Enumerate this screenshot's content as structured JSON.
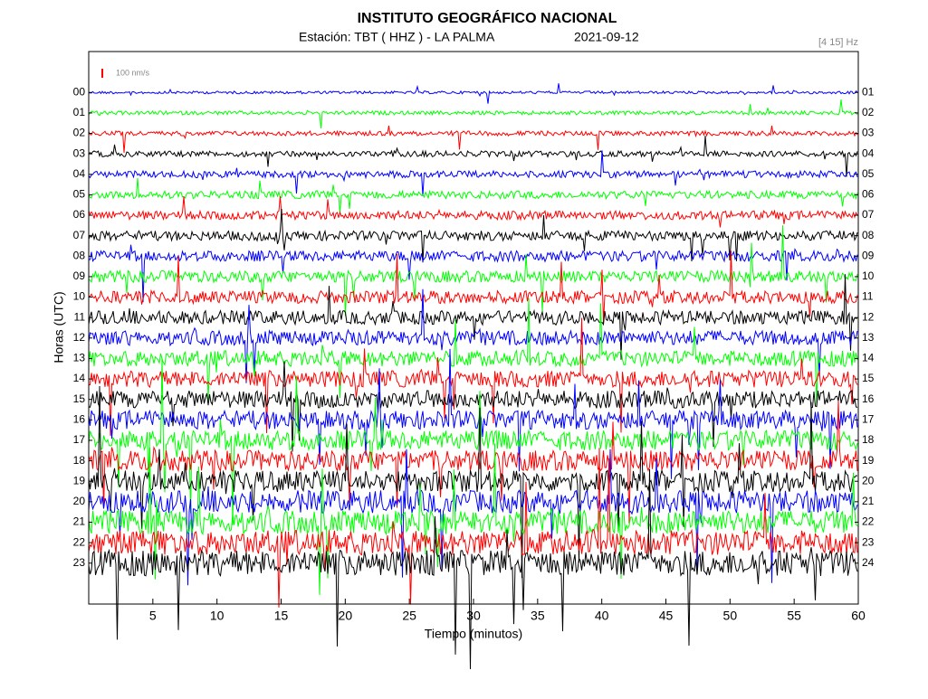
{
  "chart_data": {
    "type": "helicorder",
    "title": "INSTITUTO GEOGRÁFICO NACIONAL",
    "station": "Estación:  TBT ( HHZ ) - LA PALMA",
    "date": "2021-09-12",
    "filter": "[4 15] Hz",
    "scale_label": "100 nm/s",
    "xlabel": "Tiempo (minutos)",
    "ylabel": "Horas (UTC)",
    "xlim": [
      0,
      60
    ],
    "xticks": [
      5,
      10,
      15,
      20,
      25,
      30,
      35,
      40,
      45,
      50,
      55,
      60
    ],
    "ylim": [
      25,
      -2
    ],
    "colors": [
      "#0000ff",
      "#00ff00",
      "#ff0000",
      "#000000"
    ],
    "yticks": [
      {
        "value": 0,
        "label": "00"
      },
      {
        "value": 1,
        "label": "01"
      },
      {
        "value": 2,
        "label": "02"
      },
      {
        "value": 3,
        "label": "03"
      },
      {
        "value": 4,
        "label": "04"
      },
      {
        "value": 5,
        "label": "05"
      },
      {
        "value": 6,
        "label": "06"
      },
      {
        "value": 7,
        "label": "07"
      },
      {
        "value": 8,
        "label": "08"
      },
      {
        "value": 9,
        "label": "09"
      },
      {
        "value": 10,
        "label": "10"
      },
      {
        "value": 11,
        "label": "11"
      },
      {
        "value": 12,
        "label": "12"
      },
      {
        "value": 13,
        "label": "13"
      },
      {
        "value": 14,
        "label": "14"
      },
      {
        "value": 15,
        "label": "15"
      },
      {
        "value": 16,
        "label": "16"
      },
      {
        "value": 17,
        "label": "17"
      },
      {
        "value": 18,
        "label": "18"
      },
      {
        "value": 19,
        "label": "19"
      },
      {
        "value": 20,
        "label": "20"
      },
      {
        "value": 21,
        "label": "21"
      },
      {
        "value": 22,
        "label": "22"
      },
      {
        "value": 23,
        "label": "23"
      }
    ],
    "y2ticks": [
      {
        "value": 0,
        "label": "01"
      },
      {
        "value": 1,
        "label": "02"
      },
      {
        "value": 2,
        "label": "03"
      },
      {
        "value": 3,
        "label": "04"
      },
      {
        "value": 4,
        "label": "05"
      },
      {
        "value": 5,
        "label": "06"
      },
      {
        "value": 6,
        "label": "07"
      },
      {
        "value": 7,
        "label": "08"
      },
      {
        "value": 8,
        "label": "09"
      },
      {
        "value": 9,
        "label": "10"
      },
      {
        "value": 10,
        "label": "11"
      },
      {
        "value": 11,
        "label": "12"
      },
      {
        "value": 12,
        "label": "13"
      },
      {
        "value": 13,
        "label": "14"
      },
      {
        "value": 14,
        "label": "15"
      },
      {
        "value": 15,
        "label": "16"
      },
      {
        "value": 16,
        "label": "17"
      },
      {
        "value": 17,
        "label": "18"
      },
      {
        "value": 18,
        "label": "19"
      },
      {
        "value": 19,
        "label": "20"
      },
      {
        "value": 20,
        "label": "21"
      },
      {
        "value": 21,
        "label": "22"
      },
      {
        "value": 22,
        "label": "23"
      },
      {
        "value": 23,
        "label": "24"
      }
    ]
  }
}
